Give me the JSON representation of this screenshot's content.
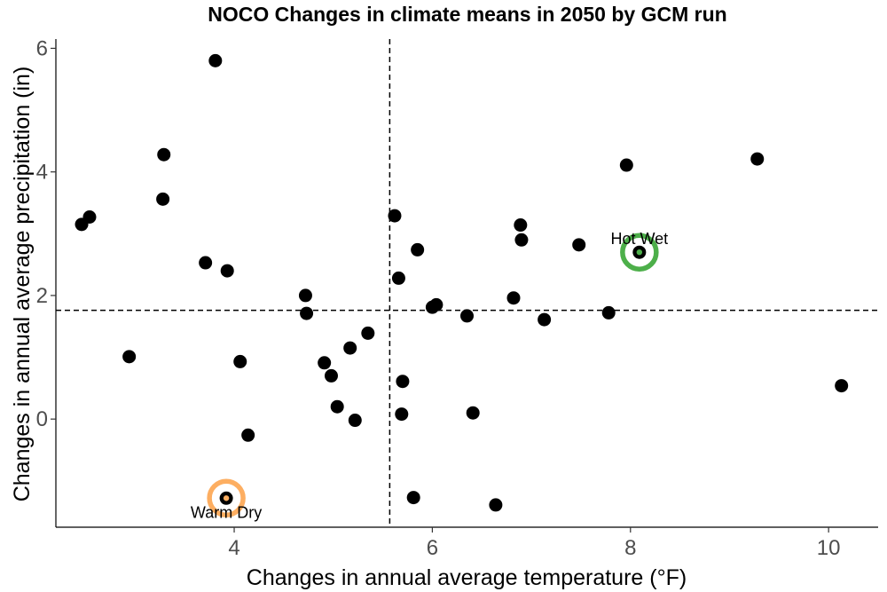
{
  "chart_data": {
    "type": "scatter",
    "title": "NOCO Changes in climate means in 2050 by GCM run",
    "xlabel": "Changes in annual average temperature (°F)",
    "ylabel": "Changes in annual average precipitation (in)",
    "xlim": [
      2.2,
      10.5
    ],
    "ylim": [
      -1.75,
      6.15
    ],
    "xticks": [
      4,
      6,
      8,
      10
    ],
    "yticks": [
      0,
      2,
      4,
      6
    ],
    "grid": false,
    "point_color": "#000000",
    "reference_lines": {
      "x": 5.57,
      "y": 1.76
    },
    "points": [
      {
        "x": 3.81,
        "y": 5.8
      },
      {
        "x": 3.29,
        "y": 4.28
      },
      {
        "x": 3.28,
        "y": 3.56
      },
      {
        "x": 2.46,
        "y": 3.15
      },
      {
        "x": 2.54,
        "y": 3.27
      },
      {
        "x": 3.71,
        "y": 2.53
      },
      {
        "x": 3.93,
        "y": 2.4
      },
      {
        "x": 2.94,
        "y": 1.01
      },
      {
        "x": 4.06,
        "y": 0.93
      },
      {
        "x": 4.14,
        "y": -0.26
      },
      {
        "x": 3.92,
        "y": -1.28
      },
      {
        "x": 4.72,
        "y": 2.0
      },
      {
        "x": 4.73,
        "y": 1.71
      },
      {
        "x": 4.91,
        "y": 0.91
      },
      {
        "x": 4.98,
        "y": 0.7
      },
      {
        "x": 5.04,
        "y": 0.2
      },
      {
        "x": 5.17,
        "y": 1.15
      },
      {
        "x": 5.22,
        "y": -0.02
      },
      {
        "x": 5.35,
        "y": 1.39
      },
      {
        "x": 5.62,
        "y": 3.29
      },
      {
        "x": 5.66,
        "y": 2.28
      },
      {
        "x": 5.7,
        "y": 0.61
      },
      {
        "x": 5.69,
        "y": 0.08
      },
      {
        "x": 5.81,
        "y": -1.27
      },
      {
        "x": 5.85,
        "y": 2.74
      },
      {
        "x": 6.0,
        "y": 1.81
      },
      {
        "x": 6.04,
        "y": 1.85
      },
      {
        "x": 6.35,
        "y": 1.67
      },
      {
        "x": 6.41,
        "y": 0.1
      },
      {
        "x": 6.64,
        "y": -1.39
      },
      {
        "x": 6.82,
        "y": 1.96
      },
      {
        "x": 6.89,
        "y": 3.14
      },
      {
        "x": 6.9,
        "y": 2.9
      },
      {
        "x": 7.13,
        "y": 1.61
      },
      {
        "x": 7.48,
        "y": 2.82
      },
      {
        "x": 7.78,
        "y": 1.72
      },
      {
        "x": 8.09,
        "y": 2.7
      },
      {
        "x": 7.96,
        "y": 4.11
      },
      {
        "x": 9.28,
        "y": 4.21
      },
      {
        "x": 10.13,
        "y": 0.54
      }
    ],
    "highlights": [
      {
        "label": "Hot Wet",
        "x": 8.09,
        "y": 2.7,
        "color": "#4daf4a",
        "label_position": "above"
      },
      {
        "label": "Warm Dry",
        "x": 3.92,
        "y": -1.28,
        "color": "#fdae61",
        "label_position": "below"
      }
    ]
  }
}
